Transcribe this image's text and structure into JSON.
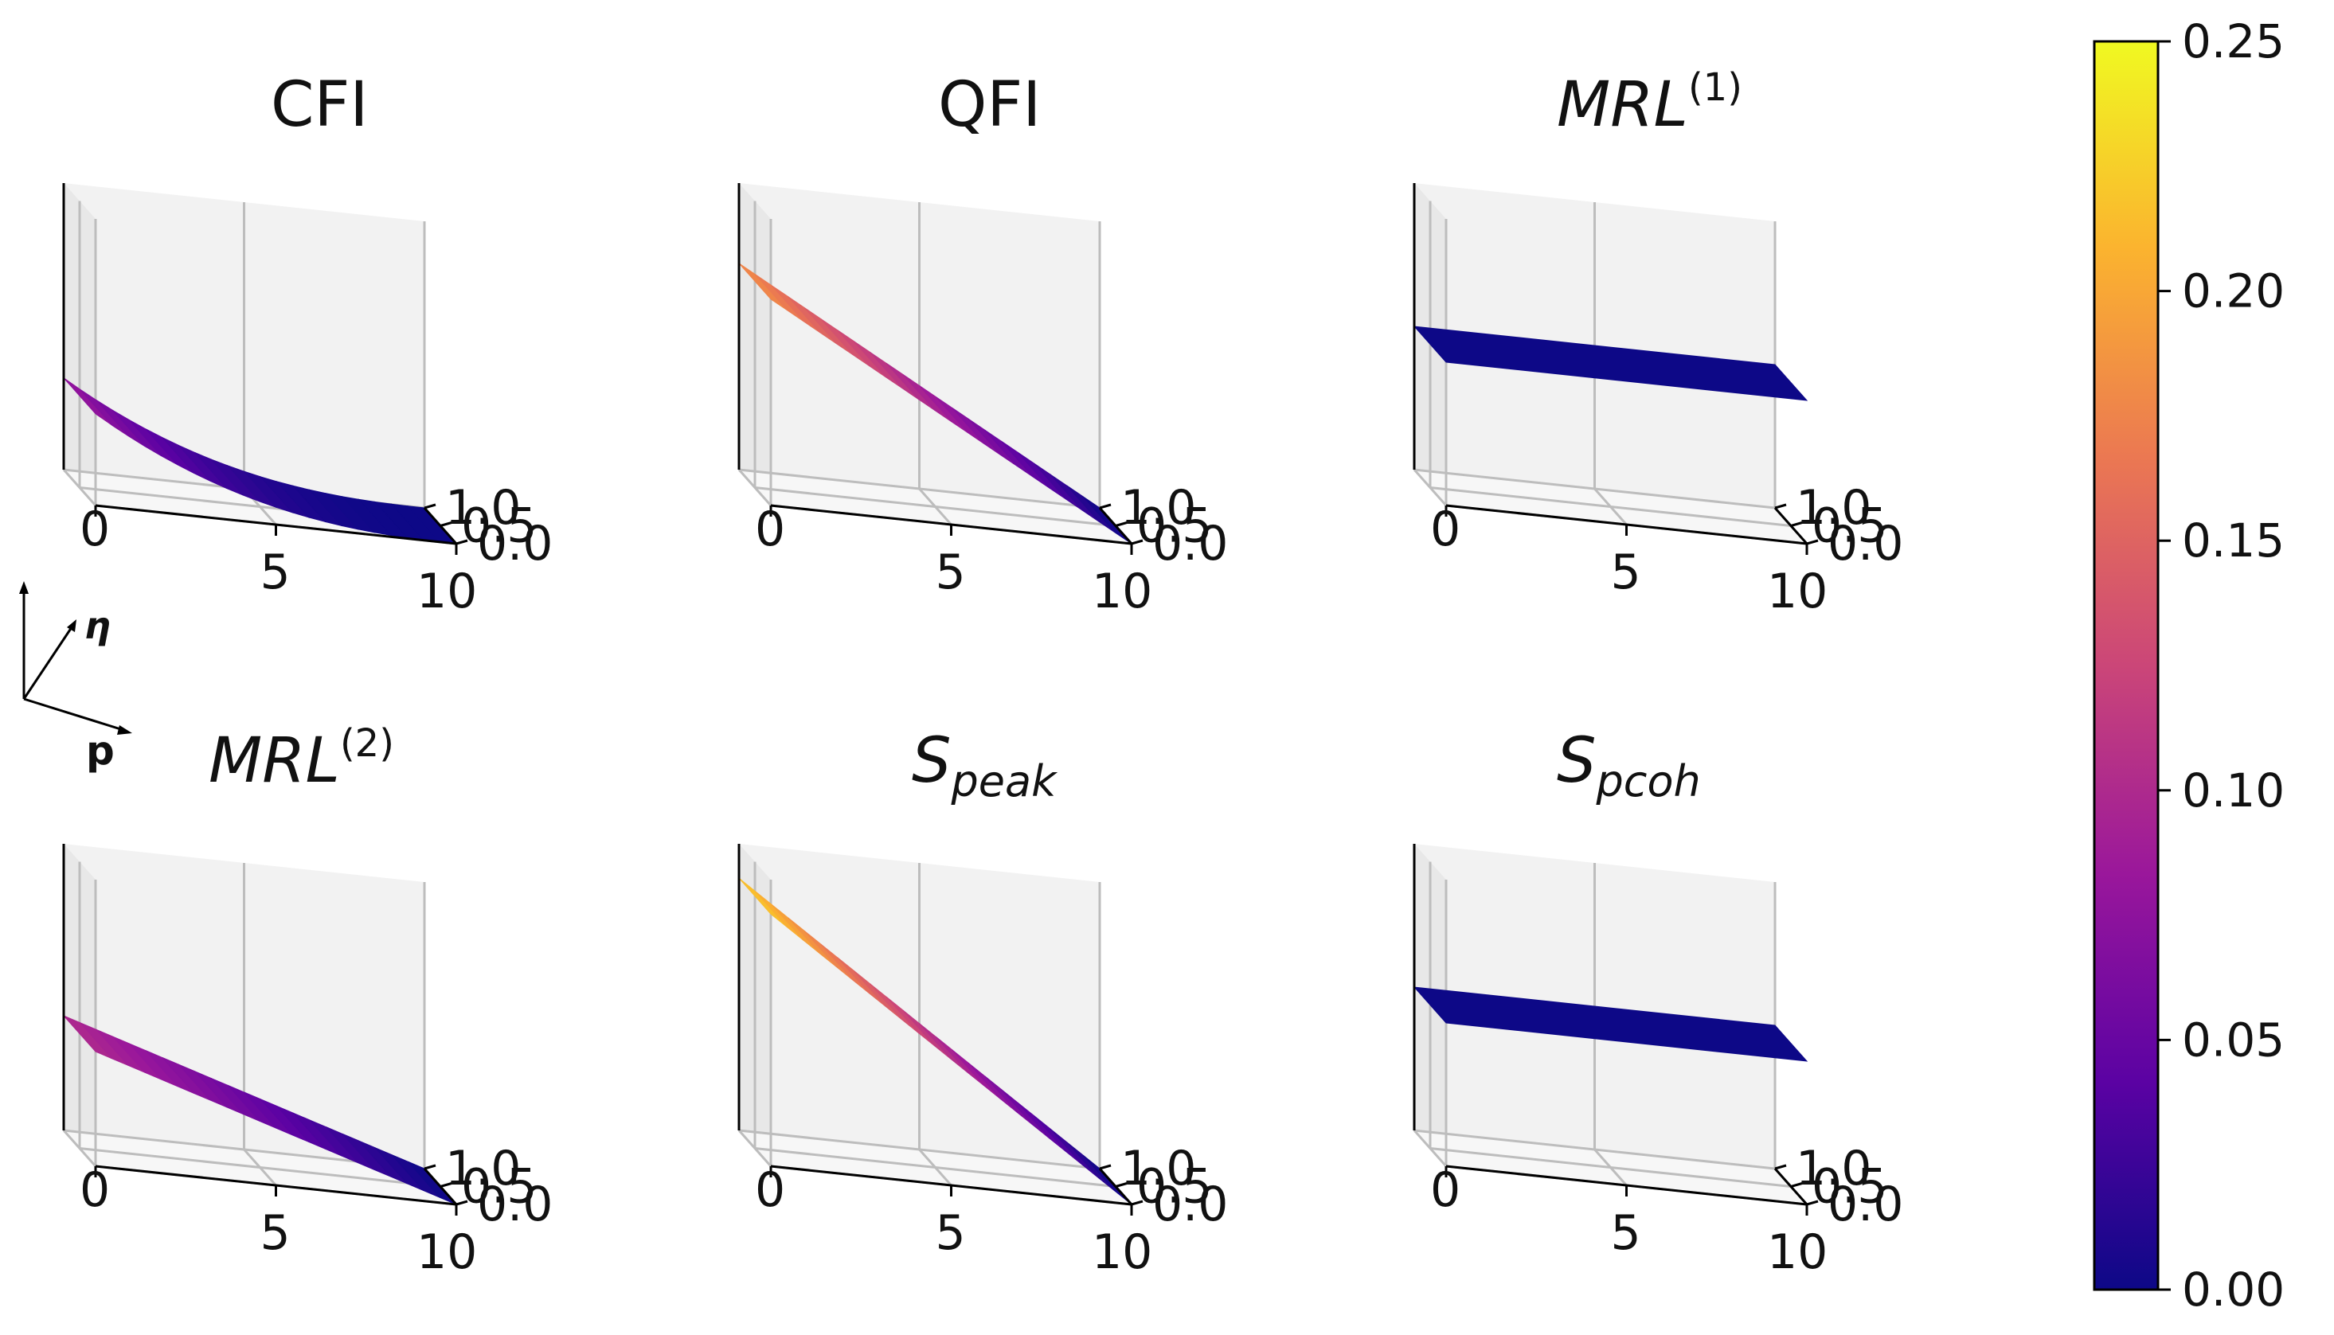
{
  "figure": {
    "colormap_name": "plasma",
    "colormap_stops": [
      "#0d0887",
      "#5b02a3",
      "#9a179b",
      "#cb4678",
      "#eb7852",
      "#fbb32f",
      "#f0f921"
    ],
    "grid_color": "#bdbdbd",
    "pane_color": "#f2f2f2"
  },
  "orientation_key": {
    "eta_label": "η",
    "p_label": "p"
  },
  "chart_data": [
    {
      "type": "surface",
      "title": "CFI",
      "title_base": "CFI",
      "title_sub": "",
      "title_sup": "",
      "x_ticks": [
        "0",
        "5",
        "10"
      ],
      "y_ticks": [
        "0.0",
        "0.5",
        "1.0"
      ],
      "xlim": [
        0,
        10
      ],
      "ylim": [
        0,
        1
      ],
      "zlim": [
        0,
        0.25
      ],
      "shape": "convex",
      "z_max": 0.08,
      "z_min": 0.0,
      "flat": false
    },
    {
      "type": "surface",
      "title": "QFI",
      "title_base": "QFI",
      "title_sub": "",
      "title_sup": "",
      "x_ticks": [
        "0",
        "5",
        "10"
      ],
      "y_ticks": [
        "0.0",
        "0.5",
        "1.0"
      ],
      "xlim": [
        0,
        10
      ],
      "ylim": [
        0,
        1
      ],
      "zlim": [
        0,
        0.25
      ],
      "shape": "linear",
      "z_max": 0.18,
      "z_min": 0.0,
      "flat": false
    },
    {
      "type": "surface",
      "title": "MRL(1)",
      "title_base": "MRL",
      "title_sub": "",
      "title_sup": "(1)",
      "x_ticks": [
        "0",
        "5",
        "10"
      ],
      "y_ticks": [
        "0.0",
        "0.5",
        "1.0"
      ],
      "xlim": [
        0,
        10
      ],
      "ylim": [
        0,
        1
      ],
      "zlim": [
        0,
        0.25
      ],
      "shape": "flat",
      "z_max": 0.0,
      "z_min": 0.0,
      "flat": true
    },
    {
      "type": "surface",
      "title": "MRL(2)",
      "title_base": "MRL",
      "title_sub": "",
      "title_sup": "(2)",
      "x_ticks": [
        "0",
        "5",
        "10"
      ],
      "y_ticks": [
        "0.0",
        "0.5",
        "1.0"
      ],
      "xlim": [
        0,
        10
      ],
      "ylim": [
        0,
        1
      ],
      "zlim": [
        0,
        0.25
      ],
      "shape": "linear",
      "z_max": 0.1,
      "z_min": 0.0,
      "flat": false
    },
    {
      "type": "surface",
      "title": "S_peak",
      "title_base": "S",
      "title_sub": "peak",
      "title_sup": "",
      "x_ticks": [
        "0",
        "5",
        "10"
      ],
      "y_ticks": [
        "0.0",
        "0.5",
        "1.0"
      ],
      "xlim": [
        0,
        10
      ],
      "ylim": [
        0,
        1
      ],
      "zlim": [
        0,
        0.25
      ],
      "shape": "linear",
      "z_max": 0.22,
      "z_min": 0.0,
      "flat": false
    },
    {
      "type": "surface",
      "title": "S_pcoh",
      "title_base": "S",
      "title_sub": "pcoh",
      "title_sup": "",
      "x_ticks": [
        "0",
        "5",
        "10"
      ],
      "y_ticks": [
        "0.0",
        "0.5",
        "1.0"
      ],
      "xlim": [
        0,
        10
      ],
      "ylim": [
        0,
        1
      ],
      "zlim": [
        0,
        0.25
      ],
      "shape": "flat",
      "z_max": 0.0,
      "z_min": 0.0,
      "flat": true
    }
  ],
  "colorbar": {
    "ticks": [
      "0.00",
      "0.05",
      "0.10",
      "0.15",
      "0.20",
      "0.25"
    ],
    "tick_values": [
      0,
      0.05,
      0.1,
      0.15,
      0.2,
      0.25
    ],
    "range": [
      0,
      0.25
    ]
  }
}
